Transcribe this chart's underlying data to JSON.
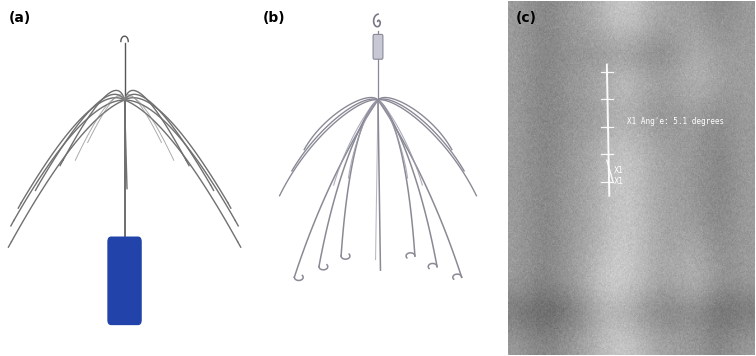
{
  "fig_width": 7.56,
  "fig_height": 3.56,
  "dpi": 100,
  "panels": [
    "(a)",
    "(b)",
    "(c)"
  ],
  "panel_label_fontsize": 10,
  "bg_color_a": "#dcdcdc",
  "bg_color_b": "#d8d8d8",
  "wire_color_a": "#707070",
  "wire_color_b": "#8a8a96",
  "handle_color": "#2244aa",
  "annotation_text": "X1 Ang'e: 5.1 degrees",
  "annotation_x1": "X1",
  "annotation_x2": "X1"
}
